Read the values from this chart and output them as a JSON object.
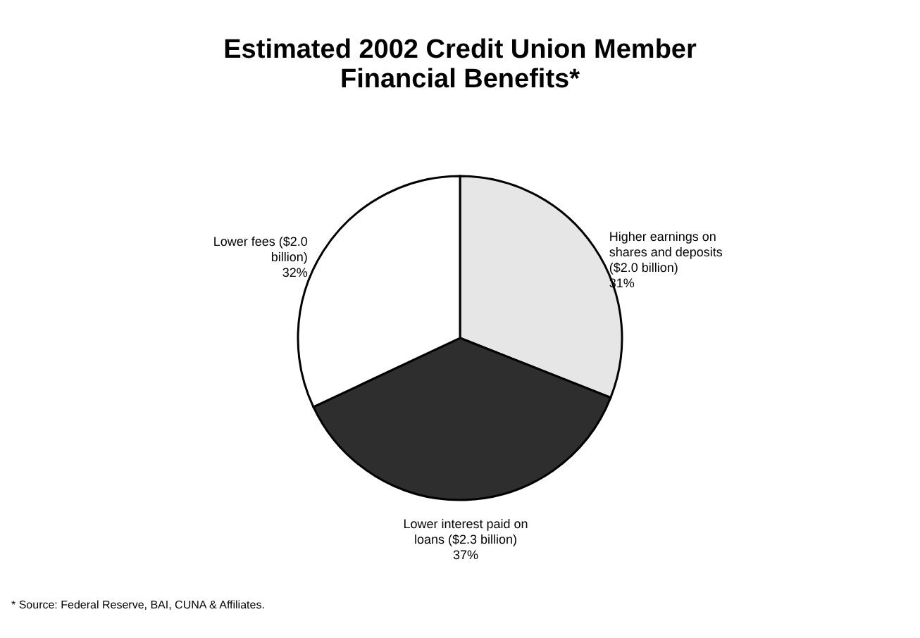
{
  "chart_data": {
    "type": "pie",
    "title": "Estimated 2002 Credit Union Member Financial Benefits*",
    "categories": [
      "Higher earnings on shares and deposits ($2.0 billion)",
      "Lower interest paid on loans ($2.3 billion)",
      "Lower fees ($2.0 billion)"
    ],
    "values": [
      31,
      37,
      32
    ],
    "value_labels": [
      "31%",
      "37%",
      "32%"
    ],
    "colors": [
      "#e6e6e6",
      "#2e2e2e",
      "#ffffff"
    ],
    "annotations": [
      "* Source: Federal Reserve, BAI, CUNA & Affiliates."
    ]
  }
}
